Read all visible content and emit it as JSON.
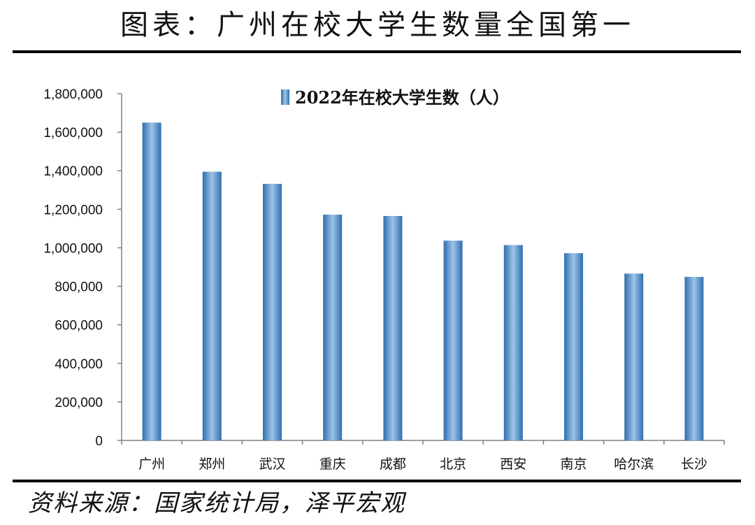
{
  "title": "图表：广州在校大学生数量全国第一",
  "source": "资料来源：国家统计局，泽平宏观",
  "colors": {
    "bar_dark": "#2f6fb0",
    "bar_light": "#9ec3e6",
    "axis": "#808080"
  },
  "chart_data": {
    "type": "bar",
    "categories": [
      "广州",
      "郑州",
      "武汉",
      "重庆",
      "成都",
      "北京",
      "西安",
      "南京",
      "哈尔滨",
      "长沙"
    ],
    "series": [
      {
        "name": "2022年在校大学生数（人）",
        "values": [
          1650000,
          1395000,
          1332000,
          1172000,
          1165000,
          1037000,
          1014000,
          972000,
          866000,
          849000
        ]
      }
    ],
    "ylim": [
      0,
      1800000
    ],
    "yticks": [
      0,
      200000,
      400000,
      600000,
      800000,
      1000000,
      1200000,
      1400000,
      1600000,
      1800000
    ],
    "ytick_labels": [
      "0",
      "200,000",
      "400,000",
      "600,000",
      "800,000",
      "1,000,000",
      "1,200,000",
      "1,400,000",
      "1,600,000",
      "1,800,000"
    ],
    "legend": "top-center",
    "grid": false
  }
}
